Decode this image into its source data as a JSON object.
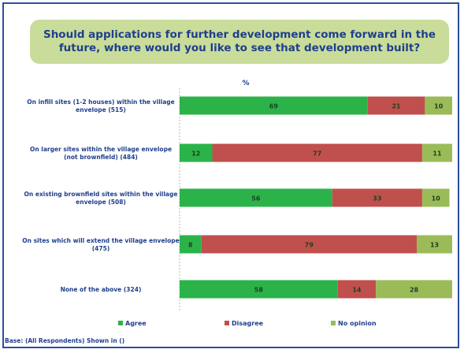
{
  "title": "Should applications for further development come forward in the future, where would you like to see that development built?",
  "footnote": "Base: (All Respondents) Shown in ()",
  "colors": {
    "agree": "#2bb34a",
    "disagree": "#c0504d",
    "no_opinion": "#9bbb59",
    "text": "#1f3f8c",
    "title_bg": "#c9dc9a",
    "border": "#2a4f9e"
  },
  "chart_data": {
    "type": "bar",
    "orientation": "horizontal",
    "stacked": true,
    "unit_label": "%",
    "categories": [
      "On infill sites (1-2 houses) within the village envelope (515)",
      "On larger sites within the village envelope (not brownfield) (484)",
      "On existing brownfield sites within the village envelope (508)",
      "On sites which will extend the village envelope (475)",
      "None of the above (324)"
    ],
    "series": [
      {
        "name": "Agree",
        "values": [
          69,
          12,
          56,
          8,
          58
        ]
      },
      {
        "name": "Disagree",
        "values": [
          21,
          77,
          33,
          79,
          14
        ]
      },
      {
        "name": "No opinion",
        "values": [
          10,
          11,
          10,
          13,
          28
        ]
      }
    ],
    "xlim": [
      0,
      100
    ],
    "legend": "bottom"
  }
}
